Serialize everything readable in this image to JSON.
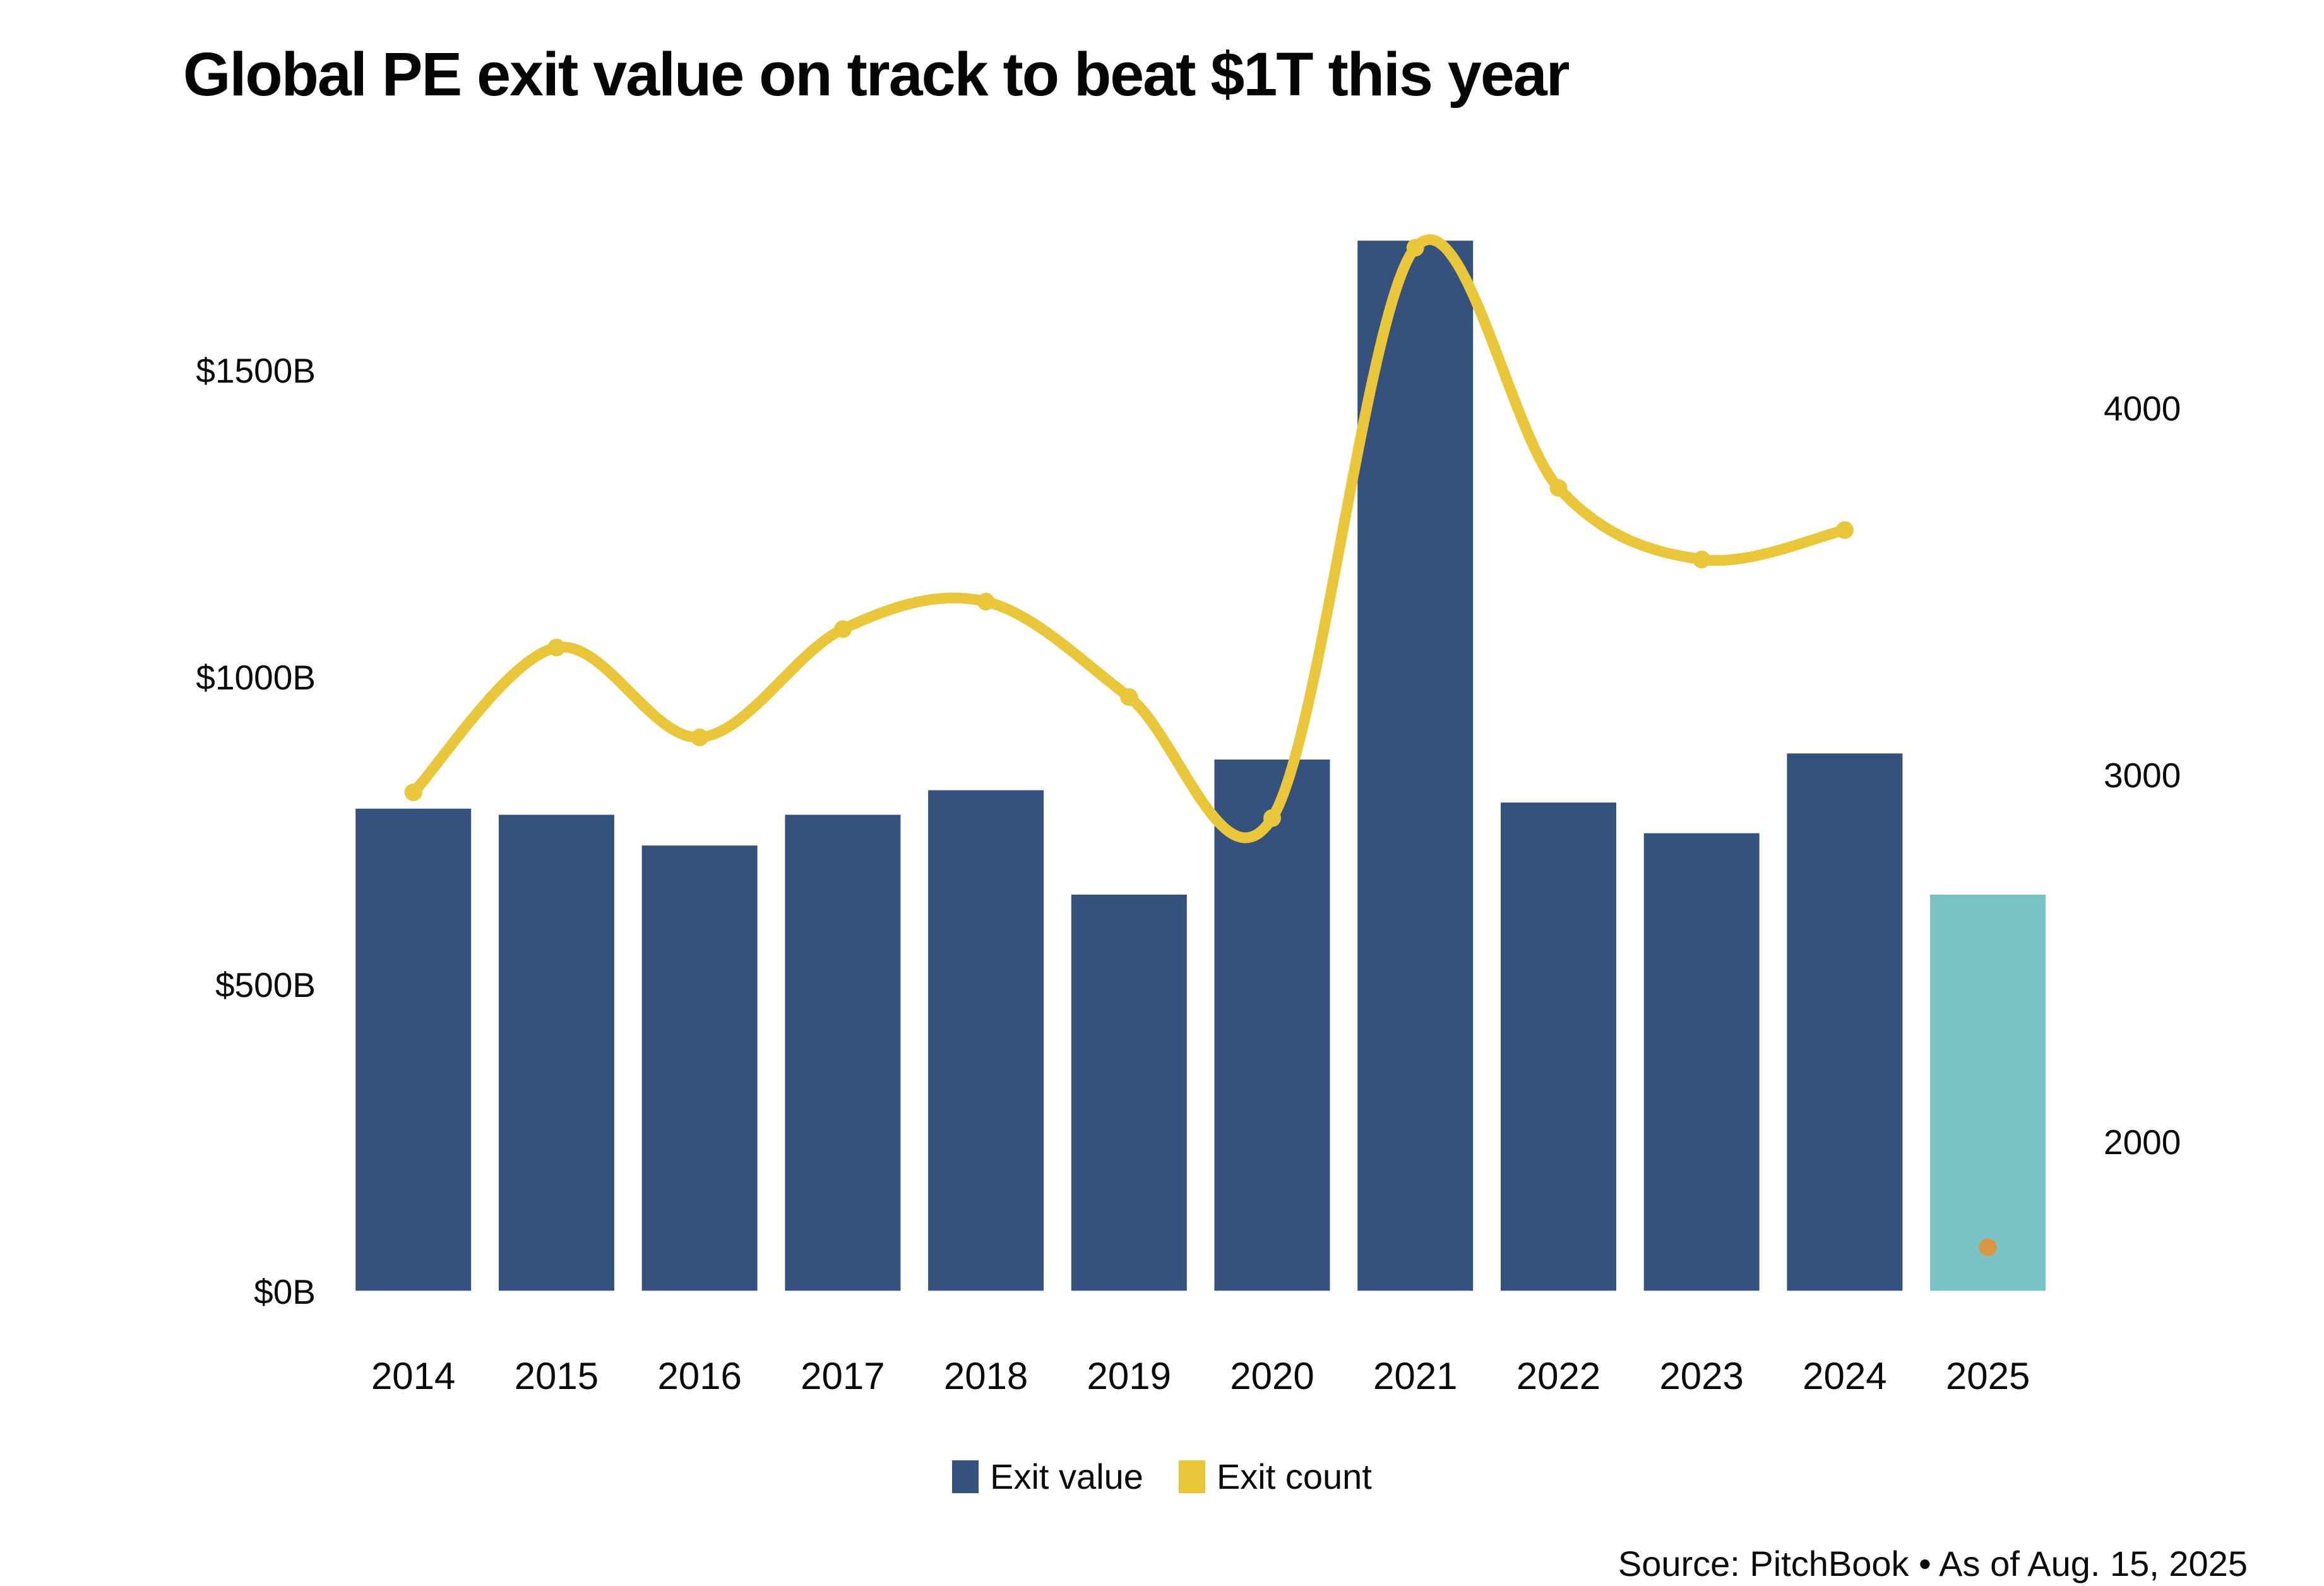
{
  "title": "Global PE exit value on track to beat $1T this year",
  "source": "Source: PitchBook • As of Aug. 15, 2025",
  "legend": {
    "items": [
      {
        "label": "Exit value",
        "color": "#35517E"
      },
      {
        "label": "Exit count",
        "color": "#EAC63B"
      }
    ]
  },
  "chart_data": {
    "type": "bar+line combo (dual axis)",
    "title": "Global PE exit value on track to beat $1T this year",
    "categories": [
      "2014",
      "2015",
      "2016",
      "2017",
      "2018",
      "2019",
      "2020",
      "2021",
      "2022",
      "2023",
      "2024",
      "2025"
    ],
    "series": [
      {
        "name": "Exit value",
        "type": "bar",
        "axis": "left",
        "unit": "$B",
        "values": [
          785,
          775,
          725,
          775,
          815,
          645,
          865,
          1710,
          795,
          745,
          875,
          645
        ],
        "color": "#35517E",
        "highlight_last": {
          "index": 11,
          "color": "#79C3C6",
          "note": "2025 bar shown in teal"
        }
      },
      {
        "name": "Exit count",
        "type": "line",
        "axis": "right",
        "values": [
          2950,
          3345,
          3100,
          3395,
          3470,
          3210,
          2880,
          4435,
          3780,
          3585,
          3665,
          1710
        ],
        "color": "#EAC63B",
        "line_span": [
          0,
          10
        ],
        "point_radius_px": 14,
        "isolated_points": [
          {
            "index": 11,
            "color": "#D99540",
            "note": "2025 count shown as separate orange dot inside teal bar"
          }
        ]
      }
    ],
    "left_axis": {
      "tick_labels": [
        "$0B",
        "$500B",
        "$1000B",
        "$1500B"
      ],
      "tick_values": [
        0,
        500,
        1000,
        1500
      ],
      "range": [
        0,
        1760
      ]
    },
    "right_axis": {
      "tick_labels": [
        "2000",
        "3000",
        "4000"
      ],
      "tick_values": [
        2000,
        3000,
        4000
      ],
      "range": [
        1590,
        4800
      ]
    },
    "grid": false,
    "legend_position": "bottom-center"
  }
}
